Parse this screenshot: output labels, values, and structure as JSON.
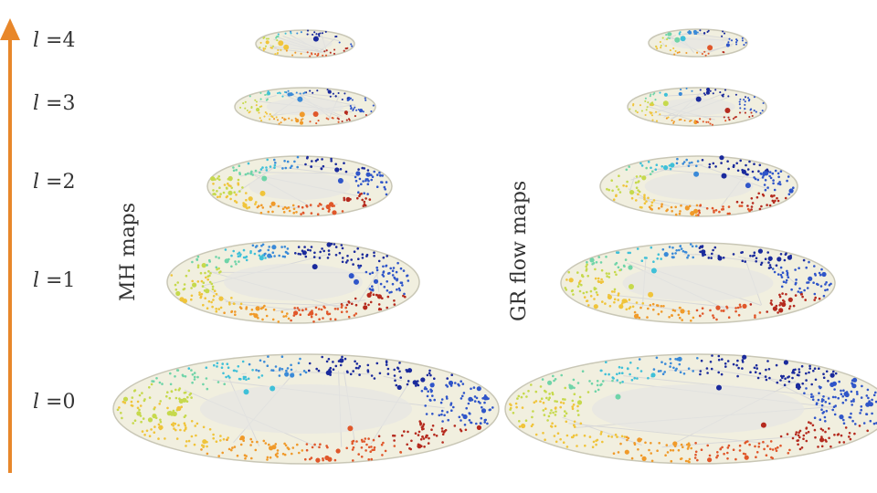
{
  "levels": [
    {
      "sym": "l",
      "text": " =0"
    },
    {
      "sym": "l",
      "text": " =1"
    },
    {
      "sym": "l",
      "text": " =2"
    },
    {
      "sym": "l",
      "text": " =3"
    },
    {
      "sym": "l",
      "text": " =4"
    }
  ],
  "columns": [
    {
      "label": "MH maps"
    },
    {
      "label": "GR flow maps"
    }
  ],
  "colors": {
    "arrow": "#e8872a",
    "disk_fill": "#f1efdf",
    "disk_edge": "#c9c7b6",
    "web": "#d9d9d9",
    "palette": [
      "#1a2a9c",
      "#2f55c9",
      "#3a8ad8",
      "#3fc0d8",
      "#6fd4a8",
      "#c6d94c",
      "#f0c43a",
      "#f09a2a",
      "#e0572a",
      "#b52a1e"
    ]
  }
}
